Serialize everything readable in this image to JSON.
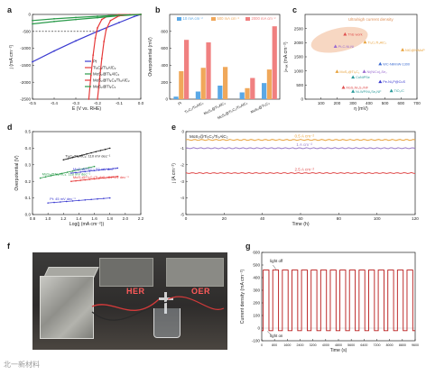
{
  "panel_letters": [
    "a",
    "b",
    "c",
    "d",
    "e",
    "f",
    "g"
  ],
  "colors": {
    "pt": "#3a3ad0",
    "tic3": "#e63a3a",
    "mos2_ni": "#2a9a4a",
    "mos2_nc": "#222222",
    "bar_10": "#5aa8e6",
    "bar_500": "#f0a85a",
    "bar_2000": "#f08080",
    "e_05": "#e8a23c",
    "e_10": "#9a7ac8",
    "e_25": "#e05050",
    "g_line": "#b81818",
    "ellipse": "#f7d7c2",
    "ellipse_text": "#e0925a"
  },
  "panel_f": {
    "labels": {
      "her": "HER",
      "oer": "OER"
    },
    "icons": [
      "electrolyzer-cube-icon",
      "beaker-icon",
      "wire-icon"
    ]
  },
  "watermark": "北一新材料",
  "chart_data": [
    {
      "id": "a",
      "type": "line",
      "xlabel": "E (V vs. RHE)",
      "ylabel": "j (mA cm⁻²)",
      "xlim": [
        -0.5,
        0.0
      ],
      "ylim": [
        -2500,
        0
      ],
      "xticks": [
        "-0.5",
        "-0.4",
        "-0.3",
        "-0.2",
        "-0.1",
        "0.0"
      ],
      "yticks": [
        "0",
        "-500",
        "-1000",
        "-1500",
        "-2000",
        "-2500"
      ],
      "guide_y": -500,
      "series": [
        {
          "name": "Pt",
          "color_key": "pt",
          "points": [
            [
              -0.5,
              -1400
            ],
            [
              -0.4,
              -1080
            ],
            [
              -0.3,
              -780
            ],
            [
              -0.2,
              -500
            ],
            [
              -0.1,
              -240
            ],
            [
              -0.03,
              -60
            ],
            [
              0.0,
              0
            ]
          ]
        },
        {
          "name": "Ti₃C₂/Ti₃AlC₂",
          "color_key": "tic3",
          "points": [
            [
              -0.24,
              -2500
            ],
            [
              -0.23,
              -1800
            ],
            [
              -0.22,
              -1200
            ],
            [
              -0.21,
              -700
            ],
            [
              -0.2,
              -400
            ],
            [
              -0.18,
              -150
            ],
            [
              -0.15,
              -40
            ],
            [
              -0.1,
              -5
            ],
            [
              0.0,
              0
            ]
          ]
        },
        {
          "name": "MoS₂@Ti₃AlC₂",
          "color_key": "mos2_ni",
          "points": [
            [
              -0.5,
              -280
            ],
            [
              -0.4,
              -210
            ],
            [
              -0.3,
              -150
            ],
            [
              -0.2,
              -95
            ],
            [
              -0.1,
              -40
            ],
            [
              0.0,
              0
            ]
          ]
        },
        {
          "name": "MoS₂@Ti₃C₂/Ti₃AlC₂",
          "color_key": "tic3",
          "points": [
            [
              -0.2,
              -2500
            ],
            [
              -0.19,
              -1900
            ],
            [
              -0.18,
              -1300
            ],
            [
              -0.17,
              -800
            ],
            [
              -0.16,
              -450
            ],
            [
              -0.14,
              -180
            ],
            [
              -0.1,
              -40
            ],
            [
              -0.05,
              -5
            ],
            [
              0.0,
              0
            ]
          ]
        },
        {
          "name": "MoS₂@Ti₃C₂",
          "color_key": "mos2_ni",
          "points": [
            [
              -0.5,
              -180
            ],
            [
              -0.4,
              -130
            ],
            [
              -0.3,
              -90
            ],
            [
              -0.2,
              -55
            ],
            [
              -0.1,
              -20
            ],
            [
              0.0,
              0
            ]
          ]
        }
      ]
    },
    {
      "id": "b",
      "type": "bar",
      "ylabel": "Overpotential (mV)",
      "ylim": [
        0,
        1000
      ],
      "yticks": [
        "0",
        "200",
        "400",
        "600",
        "800"
      ],
      "categories": [
        "Pt",
        "Ti₃C₂/Ti₃AlC₂",
        "MoS₂@Ti₃AlC₂",
        "MoS₂@Ti₃C₂/Ti₃AlC₂",
        "MoS₂@Ti₃C₂"
      ],
      "series": [
        {
          "name": "10 mA cm⁻²",
          "color_key": "bar_10",
          "values": [
            30,
            90,
            160,
            80,
            190
          ]
        },
        {
          "name": "500 mA cm⁻²",
          "color_key": "bar_500",
          "values": [
            330,
            370,
            380,
            130,
            350
          ]
        },
        {
          "name": "2000 mA cm⁻²",
          "color_key": "bar_2000",
          "values": [
            700,
            670,
            0,
            250,
            860
          ]
        }
      ]
    },
    {
      "id": "c",
      "type": "scatter",
      "xlabel": "η (mV)",
      "ylabel": "jₘₐₓ (mA cm⁻²)",
      "xlim": [
        0,
        700
      ],
      "ylim": [
        0,
        3000
      ],
      "xticks": [
        "100",
        "200",
        "300",
        "400",
        "500",
        "600",
        "700"
      ],
      "yticks": [
        "0",
        "500",
        "1000",
        "1500",
        "2000",
        "2500"
      ],
      "region_label": "Ultrahigh current density",
      "points": [
        {
          "label": "This work",
          "x": 250,
          "y": 2300,
          "color": "#e05050"
        },
        {
          "label": "Ti₃C₂Ti₃AlC₂",
          "x": 375,
          "y": 2020,
          "color": "#e8a23c"
        },
        {
          "label": "Pt-C-Ni-Ni",
          "x": 190,
          "y": 1870,
          "color": "#9a6ad0"
        },
        {
          "label": "NiC@NiMoP",
          "x": 610,
          "y": 1750,
          "color": "#e8a23c"
        },
        {
          "label": "WC-NiMnW-1300",
          "x": 470,
          "y": 1250,
          "color": "#3a6ad0"
        },
        {
          "label": "MoS₂@Ti₃C₂",
          "x": 200,
          "y": 980,
          "color": "#e8a23c"
        },
        {
          "label": "Ni(NiCo)₂Se₂",
          "x": 370,
          "y": 980,
          "color": "#9a6ad0"
        },
        {
          "label": "CoNiPSe",
          "x": 300,
          "y": 780,
          "color": "#2a9a9a"
        },
        {
          "label": "Pe-Ni₂P@CuS",
          "x": 470,
          "y": 620,
          "color": "#3a3ad0"
        },
        {
          "label": "MoS₂Ni₃S₂/NF",
          "x": 240,
          "y": 420,
          "color": "#e05050"
        },
        {
          "label": "Ni-WP/Ni₂Se₂NF",
          "x": 300,
          "y": 280,
          "color": "#2a9a9a"
        },
        {
          "label": "TiO₂/C",
          "x": 540,
          "y": 300,
          "color": "#2a9a9a"
        }
      ]
    },
    {
      "id": "d",
      "type": "line",
      "xlabel": "Log(j (mA cm⁻²))",
      "ylabel": "Overpotential (V)",
      "xlim": [
        0.8,
        2.2
      ],
      "ylim": [
        0.0,
        0.5
      ],
      "xticks": [
        "0.8",
        "1.0",
        "1.2",
        "1.4",
        "1.6",
        "1.8",
        "2.0",
        "2.2"
      ],
      "yticks": [
        "0.0",
        "0.1",
        "0.2",
        "0.3",
        "0.4",
        "0.5"
      ],
      "series": [
        {
          "name": "Ti₃C₂/Ti₃AlC₂: 110 mV dec⁻¹",
          "color_key": "mos2_nc",
          "points": [
            [
              1.2,
              0.33
            ],
            [
              1.8,
              0.4
            ]
          ]
        },
        {
          "name": "MoS₂@Ti₃AlC₂: 118 mV dec⁻¹",
          "color_key": "mos2_ni",
          "points": [
            [
              0.9,
              0.22
            ],
            [
              1.6,
              0.29
            ]
          ]
        },
        {
          "name": "MoS₂@Ti₃C₂: 52 mV dec⁻¹",
          "color_key": "pt",
          "points": [
            [
              1.3,
              0.25
            ],
            [
              1.9,
              0.28
            ]
          ]
        },
        {
          "name": "MoS₂@Ti₃C₂/Ti₃AlC₂: 54 mV dec⁻¹",
          "color_key": "tic3",
          "points": [
            [
              1.3,
              0.2
            ],
            [
              1.9,
              0.23
            ]
          ]
        },
        {
          "name": "Pt: 45 mV dec⁻¹",
          "color_key": "pt",
          "points": [
            [
              1.0,
              0.07
            ],
            [
              1.8,
              0.1
            ]
          ]
        }
      ]
    },
    {
      "id": "e",
      "type": "line",
      "title": "MoS₂@Ti₃C₂/Ti₃AlC₂",
      "xlabel": "Time (h)",
      "ylabel": "j (A cm⁻²)",
      "xlim": [
        0,
        120
      ],
      "ylim": [
        -5,
        0
      ],
      "xticks": [
        "0",
        "20",
        "40",
        "60",
        "80",
        "100",
        "120"
      ],
      "yticks": [
        "0",
        "-1",
        "-2",
        "-3",
        "-4",
        "-5"
      ],
      "series": [
        {
          "name": "0.5 A cm⁻²",
          "color_key": "e_05",
          "values": [
            -0.5,
            -0.5
          ]
        },
        {
          "name": "1 A cm⁻²",
          "color_key": "e_10",
          "values": [
            -1.0,
            -1.0
          ]
        },
        {
          "name": "2.5 A cm⁻²",
          "color_key": "e_25",
          "values": [
            -2.5,
            -2.5
          ]
        }
      ]
    },
    {
      "id": "g",
      "type": "line",
      "xlabel": "Time (s)",
      "ylabel": "Current density (mA cm⁻²)",
      "xlim": [
        0,
        9600
      ],
      "ylim": [
        -100,
        600
      ],
      "xticks": [
        "0",
        "800",
        "1600",
        "2400",
        "3200",
        "4000",
        "4800",
        "5600",
        "6400",
        "7200",
        "8000",
        "8800",
        "9600"
      ],
      "yticks": [
        "-100",
        "0",
        "100",
        "200",
        "300",
        "400",
        "500",
        "600"
      ],
      "annotations": [
        "light off",
        "light on"
      ],
      "cycles": 16,
      "high": 460,
      "low": -20
    }
  ]
}
